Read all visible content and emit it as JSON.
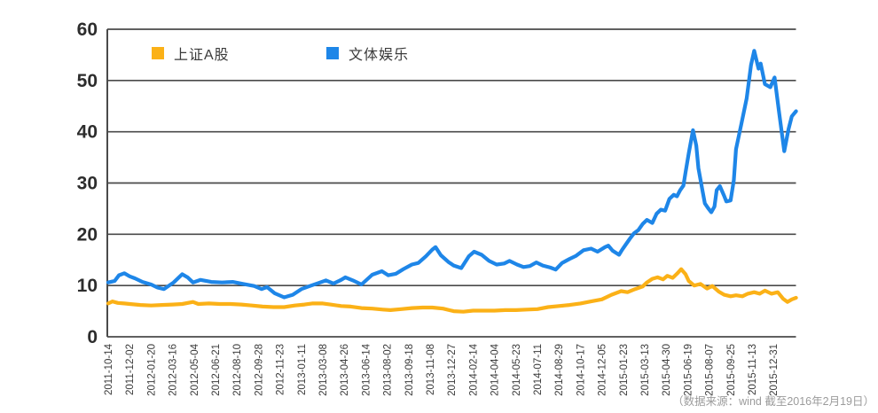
{
  "footer": {
    "source_note": "（数据来源：wind 截至2016年2月19日）"
  },
  "chart_data": {
    "type": "line",
    "title": "",
    "grid": "horizontal",
    "legend_position": "top-left-inside",
    "ylim": [
      0,
      60
    ],
    "y_ticks": [
      "0",
      "10",
      "20",
      "30",
      "40",
      "50",
      "60"
    ],
    "y_tick_values": [
      0,
      10,
      20,
      30,
      40,
      50,
      60
    ],
    "x_tick_labels": [
      "2011-10-14",
      "2011-12-02",
      "2012-01-20",
      "2012-03-16",
      "2012-05-04",
      "2012-06-21",
      "2012-08-10",
      "2012-09-28",
      "2012-11-23",
      "2013-01-11",
      "2013-03-08",
      "2013-04-26",
      "2013-06-14",
      "2013-08-02",
      "2013-09-18",
      "2013-11-08",
      "2013-12-27",
      "2014-02-14",
      "2014-04-04",
      "2014-05-23",
      "2014-07-11",
      "2014-08-29",
      "2014-10-17",
      "2014-12-05",
      "2015-01-23",
      "2015-03-13",
      "2015-04-30",
      "2015-06-19",
      "2015-08-07",
      "2015-09-25",
      "2015-11-13",
      "2015-12-31"
    ],
    "x_units": "fractional index into x_tick_labels; data extends past last label to 2016-02-19 (u=32.05)",
    "colors": {
      "grid": "#4a4a4a",
      "axis": "#4a4a4a",
      "y_label": "#2d2d2d",
      "x_label": "#3c3c3c"
    },
    "series": [
      {
        "name": "上证A股",
        "color": "#FBB117",
        "points": [
          [
            0,
            6.5
          ],
          [
            0.2,
            6.9
          ],
          [
            0.45,
            6.6
          ],
          [
            0.75,
            6.5
          ],
          [
            1.0,
            6.4
          ],
          [
            1.5,
            6.2
          ],
          [
            2.0,
            6.1
          ],
          [
            2.5,
            6.2
          ],
          [
            3.0,
            6.3
          ],
          [
            3.45,
            6.4
          ],
          [
            3.95,
            6.8
          ],
          [
            4.2,
            6.4
          ],
          [
            4.7,
            6.5
          ],
          [
            5.2,
            6.4
          ],
          [
            5.7,
            6.4
          ],
          [
            6.2,
            6.3
          ],
          [
            6.7,
            6.1
          ],
          [
            7.2,
            5.9
          ],
          [
            7.7,
            5.8
          ],
          [
            8.2,
            5.8
          ],
          [
            8.7,
            6.1
          ],
          [
            9.15,
            6.3
          ],
          [
            9.5,
            6.5
          ],
          [
            10.0,
            6.5
          ],
          [
            10.35,
            6.3
          ],
          [
            10.85,
            6.0
          ],
          [
            11.3,
            5.9
          ],
          [
            11.8,
            5.6
          ],
          [
            12.3,
            5.5
          ],
          [
            12.8,
            5.3
          ],
          [
            13.15,
            5.2
          ],
          [
            13.65,
            5.4
          ],
          [
            14.15,
            5.6
          ],
          [
            14.65,
            5.7
          ],
          [
            15.1,
            5.7
          ],
          [
            15.6,
            5.5
          ],
          [
            16.1,
            5.0
          ],
          [
            16.55,
            4.9
          ],
          [
            17.0,
            5.1
          ],
          [
            17.5,
            5.1
          ],
          [
            18.0,
            5.1
          ],
          [
            18.5,
            5.2
          ],
          [
            19.0,
            5.2
          ],
          [
            19.5,
            5.3
          ],
          [
            20.0,
            5.4
          ],
          [
            20.5,
            5.8
          ],
          [
            21.0,
            6.0
          ],
          [
            21.5,
            6.2
          ],
          [
            22.0,
            6.5
          ],
          [
            22.5,
            6.9
          ],
          [
            23.0,
            7.3
          ],
          [
            23.45,
            8.2
          ],
          [
            23.9,
            8.9
          ],
          [
            24.2,
            8.7
          ],
          [
            24.55,
            9.3
          ],
          [
            24.9,
            9.8
          ],
          [
            25.1,
            10.6
          ],
          [
            25.35,
            11.3
          ],
          [
            25.6,
            11.6
          ],
          [
            25.85,
            11.2
          ],
          [
            26.05,
            11.9
          ],
          [
            26.3,
            11.5
          ],
          [
            26.5,
            12.3
          ],
          [
            26.7,
            13.2
          ],
          [
            26.9,
            12.2
          ],
          [
            27.05,
            10.9
          ],
          [
            27.3,
            10.0
          ],
          [
            27.6,
            10.3
          ],
          [
            27.9,
            9.4
          ],
          [
            28.15,
            9.9
          ],
          [
            28.45,
            8.8
          ],
          [
            28.7,
            8.2
          ],
          [
            29.0,
            7.9
          ],
          [
            29.25,
            8.1
          ],
          [
            29.55,
            7.9
          ],
          [
            29.8,
            8.4
          ],
          [
            30.1,
            8.7
          ],
          [
            30.35,
            8.4
          ],
          [
            30.6,
            9.0
          ],
          [
            30.9,
            8.4
          ],
          [
            31.2,
            8.7
          ],
          [
            31.45,
            7.4
          ],
          [
            31.65,
            6.8
          ],
          [
            31.85,
            7.3
          ],
          [
            32.05,
            7.6
          ]
        ]
      },
      {
        "name": "文体娱乐",
        "color": "#1E86E8",
        "points": [
          [
            0,
            10.6
          ],
          [
            0.3,
            10.9
          ],
          [
            0.5,
            12.0
          ],
          [
            0.75,
            12.4
          ],
          [
            1.0,
            11.8
          ],
          [
            1.25,
            11.4
          ],
          [
            1.6,
            10.7
          ],
          [
            2.0,
            10.2
          ],
          [
            2.3,
            9.6
          ],
          [
            2.6,
            9.3
          ],
          [
            3.05,
            10.6
          ],
          [
            3.45,
            12.2
          ],
          [
            3.7,
            11.6
          ],
          [
            3.95,
            10.6
          ],
          [
            4.3,
            11.1
          ],
          [
            4.8,
            10.7
          ],
          [
            5.3,
            10.6
          ],
          [
            5.8,
            10.7
          ],
          [
            6.3,
            10.3
          ],
          [
            6.8,
            9.9
          ],
          [
            7.15,
            9.3
          ],
          [
            7.4,
            9.7
          ],
          [
            7.75,
            8.5
          ],
          [
            8.2,
            7.7
          ],
          [
            8.6,
            8.2
          ],
          [
            9.0,
            9.3
          ],
          [
            9.4,
            9.9
          ],
          [
            9.8,
            10.5
          ],
          [
            10.15,
            11.0
          ],
          [
            10.5,
            10.4
          ],
          [
            10.85,
            11.1
          ],
          [
            11.05,
            11.6
          ],
          [
            11.4,
            11.0
          ],
          [
            11.8,
            10.2
          ],
          [
            12.3,
            12.1
          ],
          [
            12.75,
            12.8
          ],
          [
            13.05,
            12.0
          ],
          [
            13.4,
            12.3
          ],
          [
            13.75,
            13.2
          ],
          [
            14.15,
            14.1
          ],
          [
            14.45,
            14.4
          ],
          [
            14.8,
            15.7
          ],
          [
            15.1,
            17.0
          ],
          [
            15.25,
            17.5
          ],
          [
            15.5,
            15.9
          ],
          [
            15.85,
            14.6
          ],
          [
            16.1,
            13.9
          ],
          [
            16.45,
            13.4
          ],
          [
            16.8,
            15.7
          ],
          [
            17.05,
            16.6
          ],
          [
            17.4,
            16.0
          ],
          [
            17.75,
            14.8
          ],
          [
            18.1,
            14.1
          ],
          [
            18.45,
            14.3
          ],
          [
            18.7,
            14.8
          ],
          [
            19.05,
            14.1
          ],
          [
            19.35,
            13.6
          ],
          [
            19.65,
            13.8
          ],
          [
            19.95,
            14.5
          ],
          [
            20.25,
            13.9
          ],
          [
            20.6,
            13.5
          ],
          [
            20.85,
            13.1
          ],
          [
            21.15,
            14.4
          ],
          [
            21.5,
            15.2
          ],
          [
            21.8,
            15.8
          ],
          [
            22.15,
            16.9
          ],
          [
            22.5,
            17.2
          ],
          [
            22.8,
            16.6
          ],
          [
            23.15,
            17.5
          ],
          [
            23.3,
            17.8
          ],
          [
            23.5,
            16.8
          ],
          [
            23.8,
            16.0
          ],
          [
            23.95,
            17.0
          ],
          [
            24.1,
            17.9
          ],
          [
            24.3,
            19.1
          ],
          [
            24.5,
            20.2
          ],
          [
            24.7,
            20.8
          ],
          [
            24.9,
            22.0
          ],
          [
            25.1,
            22.8
          ],
          [
            25.35,
            22.2
          ],
          [
            25.55,
            24.0
          ],
          [
            25.75,
            24.8
          ],
          [
            25.95,
            24.6
          ],
          [
            26.15,
            26.9
          ],
          [
            26.35,
            27.7
          ],
          [
            26.5,
            27.4
          ],
          [
            26.65,
            28.6
          ],
          [
            26.8,
            29.5
          ],
          [
            26.9,
            32.1
          ],
          [
            27.05,
            35.8
          ],
          [
            27.25,
            40.3
          ],
          [
            27.4,
            37.3
          ],
          [
            27.5,
            32.9
          ],
          [
            27.7,
            28.3
          ],
          [
            27.8,
            26.0
          ],
          [
            27.95,
            25.1
          ],
          [
            28.1,
            24.3
          ],
          [
            28.25,
            25.4
          ],
          [
            28.35,
            28.6
          ],
          [
            28.5,
            29.4
          ],
          [
            28.7,
            27.5
          ],
          [
            28.8,
            26.4
          ],
          [
            29.0,
            26.6
          ],
          [
            29.15,
            30.5
          ],
          [
            29.25,
            36.6
          ],
          [
            29.5,
            41.5
          ],
          [
            29.75,
            46.5
          ],
          [
            29.95,
            53.0
          ],
          [
            30.1,
            55.8
          ],
          [
            30.3,
            52.3
          ],
          [
            30.4,
            53.3
          ],
          [
            30.6,
            49.3
          ],
          [
            30.85,
            48.7
          ],
          [
            31.05,
            50.6
          ],
          [
            31.25,
            44.0
          ],
          [
            31.5,
            36.2
          ],
          [
            31.7,
            40.5
          ],
          [
            31.85,
            43.0
          ],
          [
            32.05,
            44.0
          ]
        ]
      }
    ]
  }
}
